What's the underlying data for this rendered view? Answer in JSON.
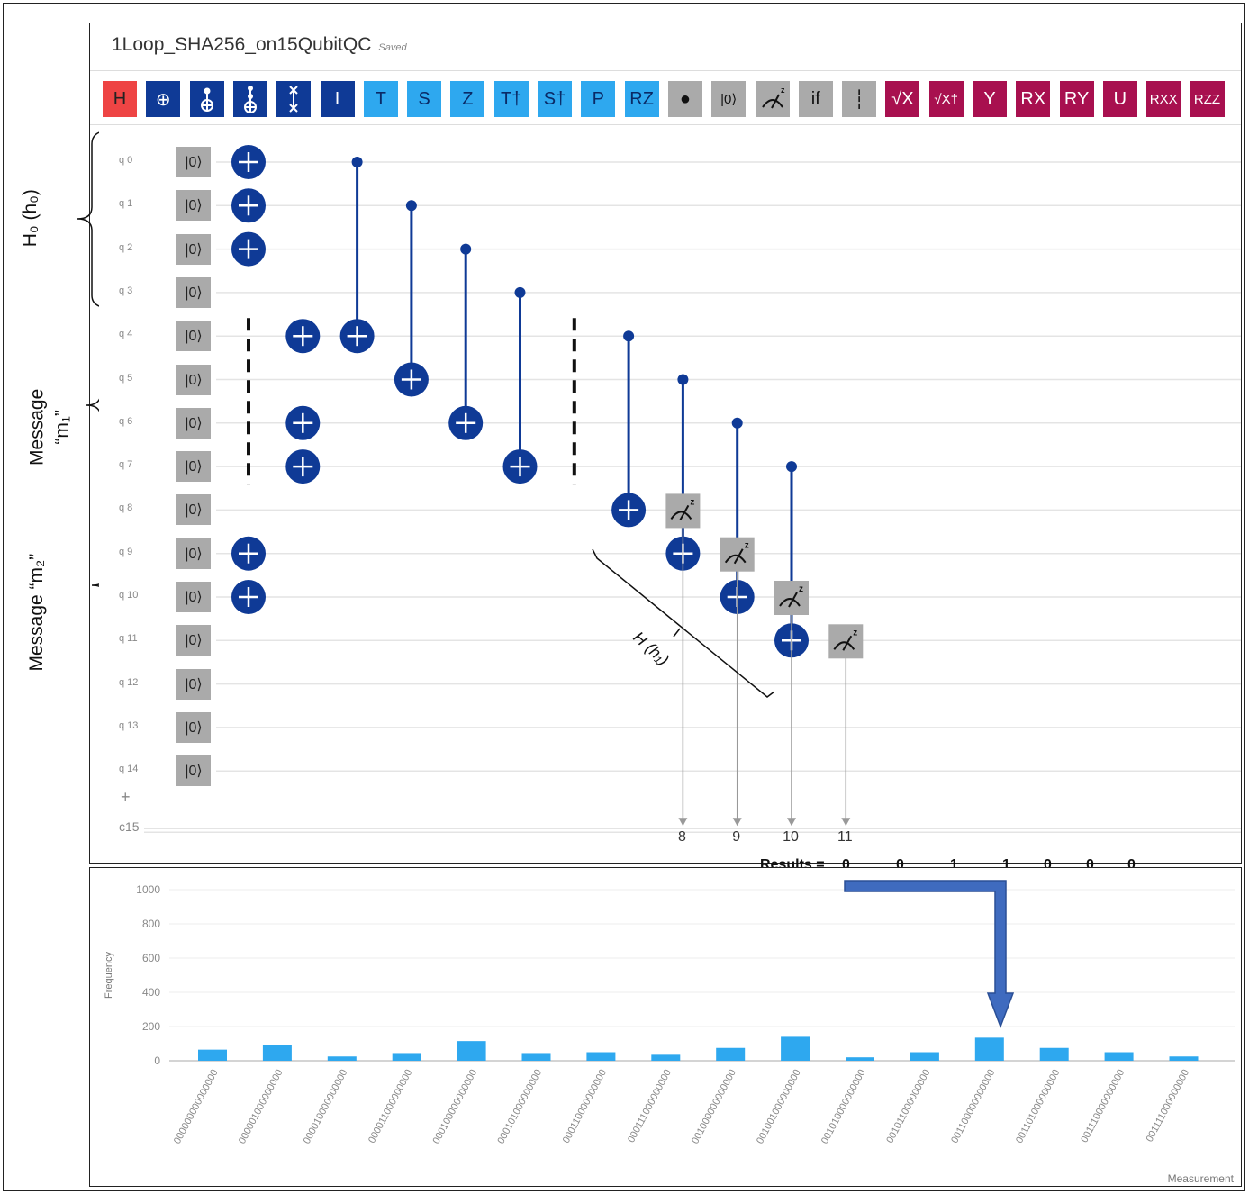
{
  "composer": {
    "title": "1Loop_SHA256_on15QubitQC",
    "saved_label": "Saved",
    "toolbar": [
      {
        "label": "H",
        "color": "red",
        "icon": "h-gate-icon",
        "interactable": true
      },
      {
        "label": "⊕",
        "color": "navy",
        "icon": "cnot-gate-icon",
        "interactable": true
      },
      {
        "label": "",
        "color": "navy",
        "icon": "controlled-not-icon",
        "interactable": true
      },
      {
        "label": "",
        "color": "navy",
        "icon": "toffoli-gate-icon",
        "interactable": true
      },
      {
        "label": "",
        "color": "navy",
        "icon": "swap-gate-icon",
        "interactable": true
      },
      {
        "label": "I",
        "color": "navy",
        "icon": "identity-gate-icon",
        "interactable": true
      },
      {
        "label": "T",
        "color": "blue",
        "icon": "t-gate-icon",
        "interactable": true
      },
      {
        "label": "S",
        "color": "blue",
        "icon": "s-gate-icon",
        "interactable": true
      },
      {
        "label": "Z",
        "color": "blue",
        "icon": "z-gate-icon",
        "interactable": true
      },
      {
        "label": "T†",
        "color": "blue",
        "icon": "tdg-gate-icon",
        "interactable": true
      },
      {
        "label": "S†",
        "color": "blue",
        "icon": "sdg-gate-icon",
        "interactable": true
      },
      {
        "label": "P",
        "color": "blue",
        "icon": "phase-gate-icon",
        "interactable": true
      },
      {
        "label": "RZ",
        "color": "blue",
        "icon": "rz-gate-icon",
        "interactable": true
      },
      {
        "label": "●",
        "color": "gray",
        "icon": "control-dot-icon",
        "interactable": true
      },
      {
        "label": "|0⟩",
        "color": "gray",
        "icon": "reset-icon",
        "interactable": true
      },
      {
        "label": "",
        "color": "gray",
        "icon": "measure-z-icon",
        "interactable": true
      },
      {
        "label": "if",
        "color": "gray",
        "icon": "conditional-icon",
        "interactable": true
      },
      {
        "label": "┆",
        "color": "gray",
        "icon": "barrier-icon",
        "interactable": true
      },
      {
        "label": "√X",
        "color": "mag",
        "icon": "sqrt-x-gate-icon",
        "interactable": true
      },
      {
        "label": "√X†",
        "color": "mag",
        "icon": "sqrt-xdg-gate-icon",
        "interactable": true
      },
      {
        "label": "Y",
        "color": "mag",
        "icon": "y-gate-icon",
        "interactable": true
      },
      {
        "label": "RX",
        "color": "mag",
        "icon": "rx-gate-icon",
        "interactable": true
      },
      {
        "label": "RY",
        "color": "mag",
        "icon": "ry-gate-icon",
        "interactable": true
      },
      {
        "label": "U",
        "color": "mag",
        "icon": "u-gate-icon",
        "interactable": true
      },
      {
        "label": "RXX",
        "color": "mag",
        "icon": "rxx-gate-icon",
        "interactable": true
      },
      {
        "label": "RZZ",
        "color": "mag",
        "icon": "rzz-gate-icon",
        "interactable": true
      }
    ],
    "qubits": [
      "q 0",
      "q 1",
      "q 2",
      "q 3",
      "q 4",
      "q 5",
      "q 6",
      "q 7",
      "q 8",
      "q 9",
      "q 10",
      "q 11",
      "q 12",
      "q 13",
      "q 14"
    ],
    "init_state": "|0⟩",
    "add_qubit": "+",
    "classical_register": "c15",
    "columns": 12,
    "gates": {
      "x": [
        [
          0,
          0
        ],
        [
          0,
          1
        ],
        [
          0,
          2
        ],
        [
          1,
          4
        ],
        [
          1,
          6
        ],
        [
          1,
          7
        ],
        [
          0,
          9
        ],
        [
          0,
          10
        ]
      ],
      "cx": [
        [
          2,
          0,
          4
        ],
        [
          3,
          1,
          5
        ],
        [
          4,
          2,
          6
        ],
        [
          5,
          3,
          7
        ],
        [
          7,
          4,
          8
        ],
        [
          8,
          5,
          9
        ],
        [
          9,
          6,
          10
        ],
        [
          10,
          7,
          11
        ]
      ],
      "barriers": [
        [
          0,
          4,
          7
        ],
        [
          6,
          4,
          7
        ]
      ],
      "measures": [
        [
          8,
          8,
          8
        ],
        [
          9,
          9,
          9
        ],
        [
          10,
          10,
          10
        ],
        [
          11,
          11,
          11
        ]
      ]
    },
    "classical_labels": [
      "8",
      "9",
      "10",
      "11"
    ]
  },
  "annotations": {
    "h0": "H₀ (h₀)",
    "m1_line1": "Message",
    "m1_line2": "“m₁”",
    "m2": "Message “m₂”",
    "h1": "H (h₁)",
    "results_label": "Results =",
    "results": [
      "0",
      "0",
      "1",
      "1",
      "0",
      "0",
      "0"
    ]
  },
  "colors": {
    "gate_navy": "#0f3a96",
    "wire": "#e4e4e4",
    "bar": "#2ea8ef",
    "arrow": "#3f6bbf",
    "classical": "#999999"
  },
  "chart_data": {
    "type": "bar",
    "ylabel": "Frequency",
    "xlabel": "Measurement",
    "ylim": [
      0,
      1000
    ],
    "yticks": [
      0,
      200,
      400,
      600,
      800,
      1000
    ],
    "categories": [
      "000000000000000",
      "000001000000000",
      "000010000000000",
      "000011000000000",
      "000100000000000",
      "000101000000000",
      "000110000000000",
      "000111000000000",
      "001000000000000",
      "001001000000000",
      "001010000000000",
      "001011000000000",
      "001100000000000",
      "001101000000000",
      "001110000000000",
      "001111000000000"
    ],
    "values": [
      65,
      90,
      25,
      45,
      115,
      45,
      50,
      35,
      75,
      140,
      20,
      50,
      135,
      75,
      50,
      25
    ]
  }
}
